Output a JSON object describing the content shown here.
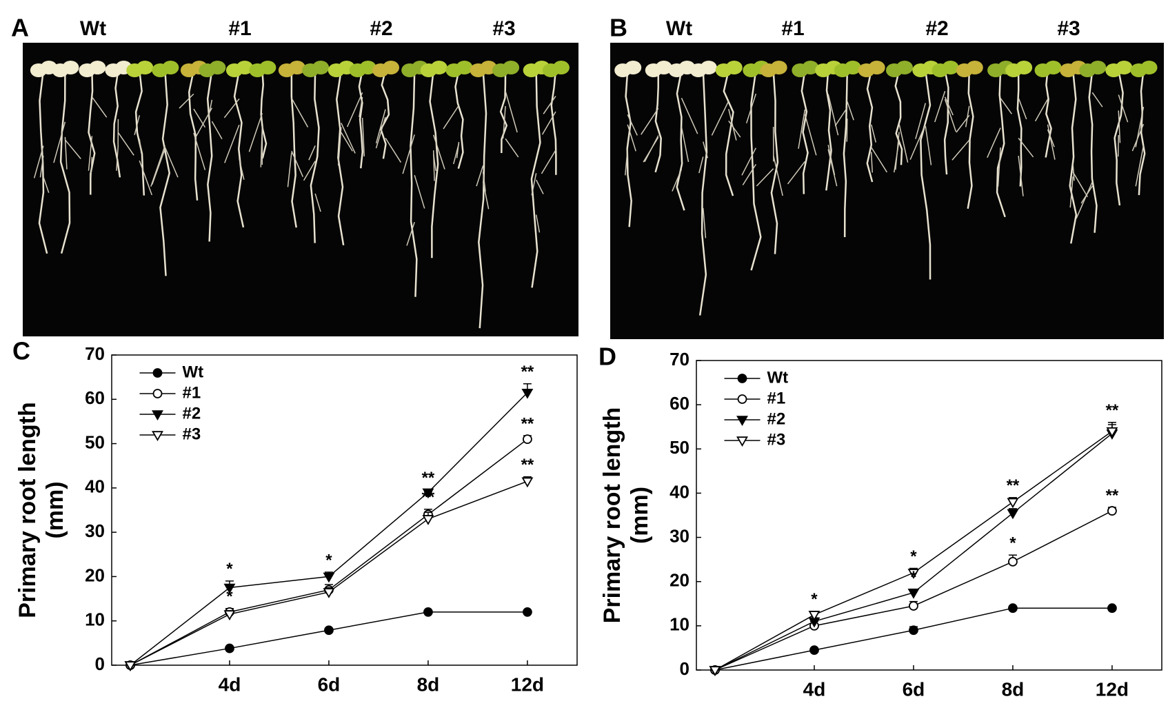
{
  "photos": [
    {
      "panel": "A",
      "labels": [
        "Wt",
        "#1",
        "#2",
        "#3"
      ]
    },
    {
      "panel": "B",
      "labels": [
        "Wt",
        "#1",
        "#2",
        "#3"
      ]
    }
  ],
  "chart_data": [
    {
      "type": "line",
      "panel": "C",
      "ylabel": [
        "Primary root length",
        "(mm)"
      ],
      "categories": [
        null,
        "4d",
        "6d",
        "8d",
        "12d"
      ],
      "ylim": [
        0,
        70
      ],
      "yticks": [
        0,
        10,
        20,
        30,
        40,
        50,
        60,
        70
      ],
      "legend": "upper-left",
      "series": [
        {
          "name": "Wt",
          "color": "#000000",
          "marker": "circle",
          "values": [
            0,
            3.8,
            7.9,
            12,
            12
          ],
          "errors": [
            0,
            0.3,
            0.4,
            0.3,
            0.3
          ]
        },
        {
          "name": "#1",
          "color": "#000000",
          "marker": "open-circle",
          "values": [
            0,
            12,
            17,
            34,
            51
          ],
          "errors": [
            0,
            0.8,
            1.2,
            1.2,
            0.8
          ]
        },
        {
          "name": "#2",
          "color": "#000000",
          "marker": "triangle-down",
          "values": [
            0,
            17.5,
            20,
            39,
            61.5
          ],
          "errors": [
            0,
            1.5,
            1,
            0.6,
            2
          ]
        },
        {
          "name": "#3",
          "color": "#000000",
          "marker": "open-triangle-down",
          "values": [
            0,
            11.5,
            16.5,
            33,
            41.5
          ],
          "errors": [
            0,
            0.8,
            1,
            1.5,
            1
          ]
        }
      ],
      "annotations": [
        {
          "category": "4d",
          "series": "#2",
          "text": "*"
        },
        {
          "category": "4d",
          "series": "#1",
          "text": "*"
        },
        {
          "category": "6d",
          "series": "#2",
          "text": "*"
        },
        {
          "category": "8d",
          "series": "#2",
          "text": "**"
        },
        {
          "category": "8d",
          "series": "#1",
          "text": "**"
        },
        {
          "category": "12d",
          "series": "#2",
          "text": "**"
        },
        {
          "category": "12d",
          "series": "#1",
          "text": "**"
        },
        {
          "category": "12d",
          "series": "#3",
          "text": "**"
        }
      ]
    },
    {
      "type": "line",
      "panel": "D",
      "ylabel": [
        "Primary root length",
        "(mm)"
      ],
      "categories": [
        null,
        "4d",
        "6d",
        "8d",
        "12d"
      ],
      "ylim": [
        0,
        70
      ],
      "yticks": [
        0,
        10,
        20,
        30,
        40,
        50,
        60,
        70
      ],
      "legend": "upper-left",
      "series": [
        {
          "name": "Wt",
          "color": "#000000",
          "marker": "circle",
          "values": [
            0,
            4.5,
            9,
            14,
            14
          ],
          "errors": [
            0,
            0.3,
            0.8,
            0.3,
            0.3
          ]
        },
        {
          "name": "#1",
          "color": "#000000",
          "marker": "open-circle",
          "values": [
            0,
            10,
            14.5,
            24.5,
            36
          ],
          "errors": [
            0,
            1,
            1,
            1.5,
            0.8
          ]
        },
        {
          "name": "#2",
          "color": "#000000",
          "marker": "triangle-down",
          "values": [
            0,
            11,
            17.5,
            35.5,
            53.5
          ],
          "errors": [
            0,
            0.8,
            0.8,
            1,
            2
          ]
        },
        {
          "name": "#3",
          "color": "#000000",
          "marker": "open-triangle-down",
          "values": [
            0,
            12.5,
            22,
            38,
            54
          ],
          "errors": [
            0,
            0.8,
            1,
            1,
            2
          ]
        }
      ],
      "annotations": [
        {
          "category": "4d",
          "series": "#3",
          "text": "*"
        },
        {
          "category": "6d",
          "series": "#3",
          "text": "*"
        },
        {
          "category": "6d",
          "series": "#2",
          "text": "*"
        },
        {
          "category": "8d",
          "series": "#3",
          "text": "**"
        },
        {
          "category": "8d",
          "series": "#1",
          "text": "*"
        },
        {
          "category": "12d",
          "series": "#3",
          "text": "**"
        },
        {
          "category": "12d",
          "series": "#1",
          "text": "**"
        }
      ]
    }
  ]
}
